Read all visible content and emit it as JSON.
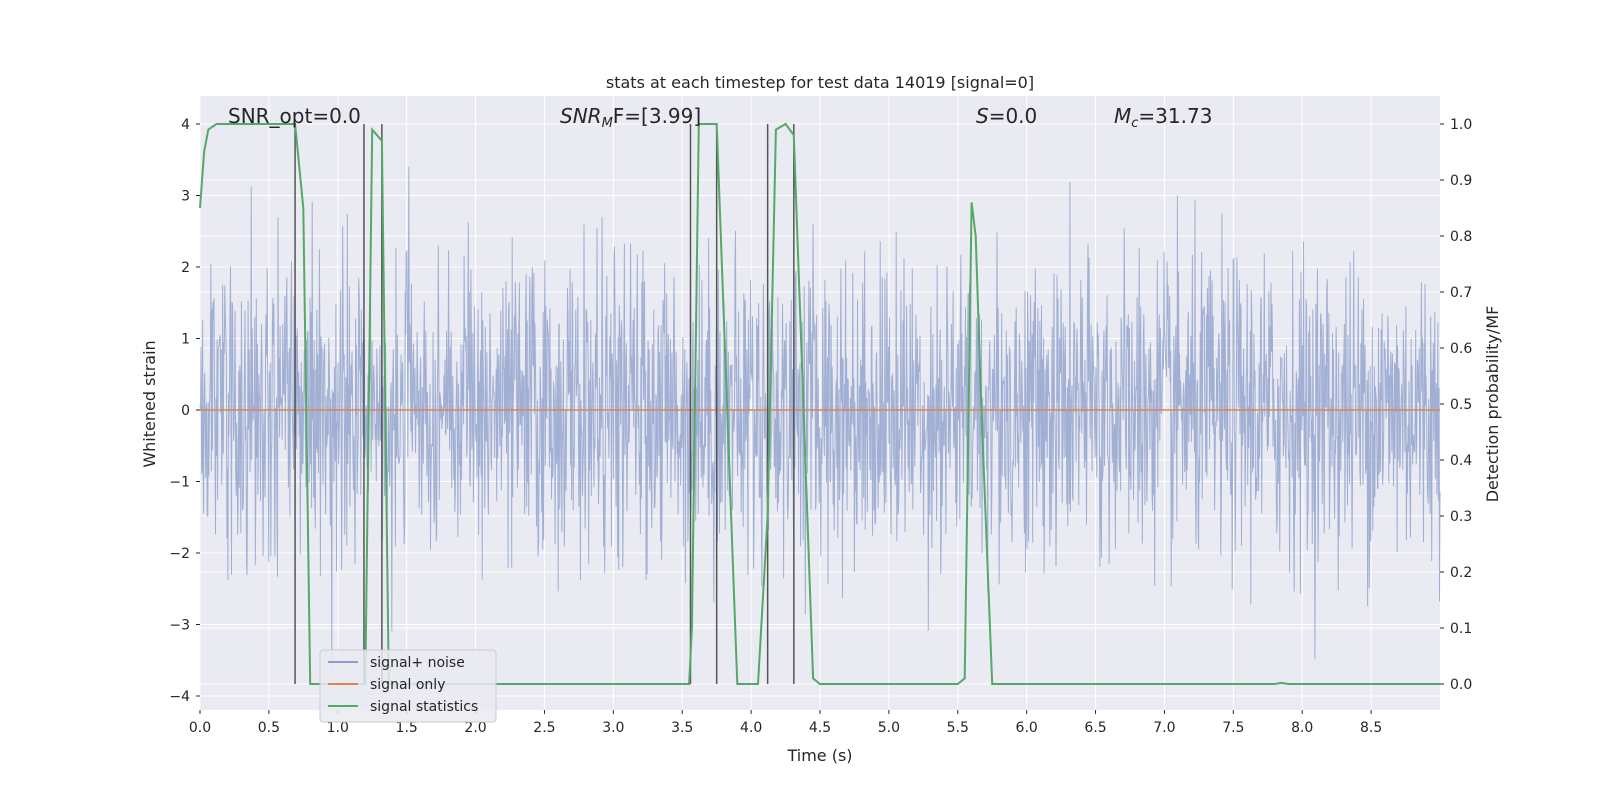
{
  "chart_data": {
    "type": "line",
    "title": "stats at each timestep for test data 14019 [signal=0]",
    "xlabel": "Time (s)",
    "ylabel_left": "Whitened strain",
    "ylabel_right": "Detection probability/MF",
    "xlim": [
      0.0,
      9.0
    ],
    "ylim_left": [
      -4.2,
      4.4
    ],
    "ylim_right": [
      -0.05,
      1.05
    ],
    "xticks": [
      "0.0",
      "0.5",
      "1.0",
      "1.5",
      "2.0",
      "2.5",
      "3.0",
      "3.5",
      "4.0",
      "4.5",
      "5.0",
      "5.5",
      "6.0",
      "6.5",
      "7.0",
      "7.5",
      "8.0",
      "8.5"
    ],
    "yticks_left": [
      "4",
      "3",
      "2",
      "1",
      "0",
      "−1",
      "−2",
      "−3",
      "−4"
    ],
    "yticks_right": [
      "1.0",
      "0.9",
      "0.8",
      "0.7",
      "0.6",
      "0.5",
      "0.4",
      "0.3",
      "0.2",
      "0.1",
      "0.0"
    ],
    "grid": true,
    "legend_position": "lower-left",
    "annotations": [
      "SNR_opt=0.0",
      "SNR",
      "M",
      "F=[3.99]",
      "S",
      "=0.0",
      "M",
      "c",
      "=31.73"
    ],
    "series": [
      {
        "name": "signal+ noise",
        "color": "#8da0cb",
        "description_values": "noise trace, roughly uniform amplitude between about -2.5 and 2.5 with spikes to +/-3.8",
        "envelope": {
          "upper_typical": 2.5,
          "lower_typical": -2.5,
          "upper_peak": 3.8,
          "lower_peak": -3.8
        }
      },
      {
        "name": "signal only",
        "color": "#dd8452",
        "x": [
          0.0,
          9.0
        ],
        "y": [
          0.0,
          0.0
        ]
      },
      {
        "name": "signal statistics",
        "color": "#55a868",
        "axis": "right",
        "x": [
          0.0,
          0.03,
          0.06,
          0.12,
          0.3,
          0.5,
          0.65,
          0.69,
          0.75,
          0.8,
          0.85,
          1.0,
          1.15,
          1.2,
          1.25,
          1.32,
          1.37,
          1.42,
          1.6,
          2.0,
          2.5,
          3.0,
          3.4,
          3.55,
          3.57,
          3.62,
          3.65,
          3.75,
          3.9,
          4.0,
          4.05,
          4.12,
          4.18,
          4.25,
          4.31,
          4.45,
          4.5,
          4.7,
          5.0,
          5.5,
          5.55,
          5.6,
          5.63,
          5.67,
          5.75,
          5.8,
          6.0,
          6.5,
          7.0,
          7.5,
          7.8,
          7.85,
          7.9,
          8.0,
          8.5,
          9.0
        ],
        "y": [
          0.85,
          0.95,
          0.99,
          1.0,
          1.0,
          1.0,
          1.0,
          1.0,
          0.85,
          0.0,
          0.0,
          0.0,
          0.0,
          0.0,
          0.99,
          0.97,
          0.0,
          0.0,
          0.0,
          0.0,
          0.0,
          0.0,
          0.0,
          0.0,
          0.1,
          1.0,
          1.0,
          1.0,
          0.0,
          0.0,
          0.0,
          0.3,
          0.99,
          1.0,
          0.98,
          0.01,
          0.0,
          0.0,
          0.0,
          0.0,
          0.01,
          0.86,
          0.8,
          0.5,
          0.0,
          0.0,
          0.0,
          0.0,
          0.0,
          0.0,
          0.0,
          0.002,
          0.0,
          0.0,
          0.0,
          0.0
        ]
      }
    ],
    "vertical_lines_x": [
      0.69,
      1.19,
      1.32,
      3.56,
      3.75,
      4.12,
      4.31
    ]
  }
}
